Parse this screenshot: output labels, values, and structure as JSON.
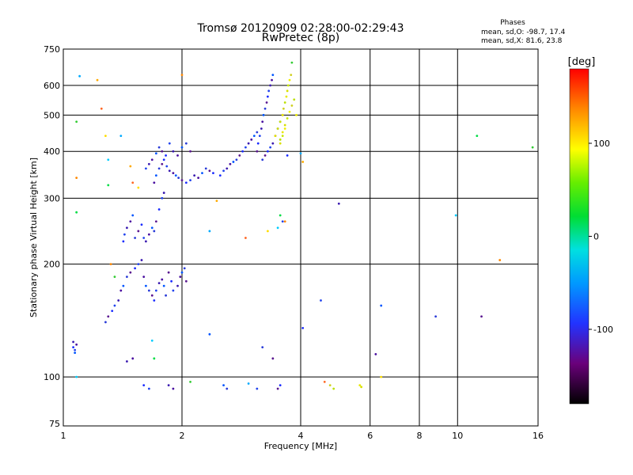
{
  "chart_data": {
    "type": "scatter",
    "title": "Tromsø 20120909 02:28:00-02:29:43",
    "subtitle": "RwPretec (8p)",
    "xlabel": "Frequency [MHz]",
    "ylabel": "Stationary phase Virtual Height [km]",
    "x_scale": "log",
    "y_scale": "log",
    "xlim": [
      1,
      16
    ],
    "ylim": [
      74,
      750
    ],
    "x_ticks": [
      1,
      2,
      4,
      6,
      8,
      10,
      16
    ],
    "y_ticks": [
      75,
      100,
      200,
      300,
      400,
      500,
      600,
      750
    ],
    "grid": true,
    "stats": {
      "heading": "Phases",
      "line_o": "mean, sd,O: -98.7, 17.4",
      "line_x": "mean, sd,X: 81.6, 23.8"
    },
    "colorbar": {
      "label": "[deg]",
      "range": [
        -180,
        180
      ],
      "ticks": [
        100,
        0,
        -100
      ]
    },
    "series": [
      {
        "color_group": "O-mode (blue/purple)",
        "points": [
          [
            1.06,
            120
          ],
          [
            1.07,
            118
          ],
          [
            1.06,
            124
          ],
          [
            1.08,
            122
          ],
          [
            1.07,
            116
          ],
          [
            1.28,
            140
          ],
          [
            1.3,
            145
          ],
          [
            1.33,
            150
          ],
          [
            1.35,
            155
          ],
          [
            1.38,
            160
          ],
          [
            1.4,
            170
          ],
          [
            1.42,
            175
          ],
          [
            1.45,
            185
          ],
          [
            1.48,
            190
          ],
          [
            1.52,
            195
          ],
          [
            1.55,
            200
          ],
          [
            1.58,
            205
          ],
          [
            1.6,
            185
          ],
          [
            1.62,
            175
          ],
          [
            1.65,
            170
          ],
          [
            1.68,
            165
          ],
          [
            1.7,
            160
          ],
          [
            1.72,
            170
          ],
          [
            1.75,
            178
          ],
          [
            1.78,
            182
          ],
          [
            1.8,
            175
          ],
          [
            1.82,
            165
          ],
          [
            1.85,
            190
          ],
          [
            1.88,
            180
          ],
          [
            1.9,
            170
          ],
          [
            1.95,
            175
          ],
          [
            1.98,
            185
          ],
          [
            2.0,
            190
          ],
          [
            2.03,
            195
          ],
          [
            2.05,
            180
          ],
          [
            1.42,
            230
          ],
          [
            1.43,
            240
          ],
          [
            1.45,
            250
          ],
          [
            1.48,
            260
          ],
          [
            1.5,
            270
          ],
          [
            1.52,
            235
          ],
          [
            1.55,
            245
          ],
          [
            1.58,
            255
          ],
          [
            1.6,
            235
          ],
          [
            1.62,
            230
          ],
          [
            1.65,
            240
          ],
          [
            1.68,
            250
          ],
          [
            1.7,
            245
          ],
          [
            1.72,
            260
          ],
          [
            1.75,
            280
          ],
          [
            1.78,
            300
          ],
          [
            1.8,
            310
          ],
          [
            1.7,
            330
          ],
          [
            1.72,
            345
          ],
          [
            1.75,
            360
          ],
          [
            1.78,
            370
          ],
          [
            1.8,
            380
          ],
          [
            1.83,
            365
          ],
          [
            1.86,
            355
          ],
          [
            1.9,
            350
          ],
          [
            1.93,
            345
          ],
          [
            1.96,
            340
          ],
          [
            2.0,
            335
          ],
          [
            2.05,
            330
          ],
          [
            2.1,
            335
          ],
          [
            2.15,
            345
          ],
          [
            2.2,
            340
          ],
          [
            2.25,
            350
          ],
          [
            2.3,
            360
          ],
          [
            2.35,
            355
          ],
          [
            2.4,
            350
          ],
          [
            1.62,
            360
          ],
          [
            1.65,
            370
          ],
          [
            1.68,
            380
          ],
          [
            1.72,
            395
          ],
          [
            1.75,
            410
          ],
          [
            1.78,
            400
          ],
          [
            1.82,
            390
          ],
          [
            1.86,
            420
          ],
          [
            1.9,
            400
          ],
          [
            1.95,
            390
          ],
          [
            2.0,
            410
          ],
          [
            2.05,
            420
          ],
          [
            2.1,
            400
          ],
          [
            2.5,
            345
          ],
          [
            2.55,
            355
          ],
          [
            2.6,
            360
          ],
          [
            2.65,
            370
          ],
          [
            2.7,
            375
          ],
          [
            2.75,
            380
          ],
          [
            2.8,
            390
          ],
          [
            2.85,
            400
          ],
          [
            2.9,
            410
          ],
          [
            2.95,
            420
          ],
          [
            3.0,
            430
          ],
          [
            3.05,
            440
          ],
          [
            3.1,
            450
          ],
          [
            3.1,
            400
          ],
          [
            3.12,
            420
          ],
          [
            3.15,
            440
          ],
          [
            3.18,
            460
          ],
          [
            3.2,
            480
          ],
          [
            3.22,
            500
          ],
          [
            3.25,
            520
          ],
          [
            3.28,
            540
          ],
          [
            3.3,
            560
          ],
          [
            3.32,
            580
          ],
          [
            3.35,
            600
          ],
          [
            3.38,
            620
          ],
          [
            3.4,
            640
          ],
          [
            3.2,
            380
          ],
          [
            3.25,
            390
          ],
          [
            3.3,
            400
          ],
          [
            3.35,
            410
          ],
          [
            3.4,
            420
          ],
          [
            3.45,
            440
          ],
          [
            3.5,
            460
          ],
          [
            3.55,
            480
          ],
          [
            3.6,
            500
          ],
          [
            1.6,
            95
          ],
          [
            1.65,
            93
          ],
          [
            1.85,
            95
          ],
          [
            1.9,
            93
          ],
          [
            2.55,
            95
          ],
          [
            2.6,
            93
          ],
          [
            3.5,
            93
          ],
          [
            3.55,
            95
          ],
          [
            3.1,
            93
          ],
          [
            1.45,
            110
          ],
          [
            1.5,
            112
          ],
          [
            2.35,
            130
          ],
          [
            3.2,
            120
          ],
          [
            3.4,
            112
          ],
          [
            4.05,
            135
          ],
          [
            4.5,
            160
          ],
          [
            5.0,
            290
          ],
          [
            6.2,
            115
          ],
          [
            6.4,
            155
          ],
          [
            8.8,
            145
          ],
          [
            11.5,
            145
          ],
          [
            3.7,
            390
          ],
          [
            3.6,
            260
          ]
        ]
      },
      {
        "color_group": "X-mode (yellow/green)",
        "points": [
          [
            3.45,
            440
          ],
          [
            3.5,
            460
          ],
          [
            3.55,
            480
          ],
          [
            3.6,
            500
          ],
          [
            3.62,
            520
          ],
          [
            3.65,
            540
          ],
          [
            3.68,
            560
          ],
          [
            3.7,
            580
          ],
          [
            3.72,
            600
          ],
          [
            3.75,
            620
          ],
          [
            3.78,
            640
          ],
          [
            3.55,
            430
          ],
          [
            3.6,
            450
          ],
          [
            3.65,
            470
          ],
          [
            3.7,
            490
          ],
          [
            3.75,
            510
          ],
          [
            3.8,
            530
          ],
          [
            3.85,
            550
          ],
          [
            3.9,
            500
          ],
          [
            3.55,
            420
          ],
          [
            3.6,
            440
          ],
          [
            3.65,
            460
          ],
          [
            4.75,
            95
          ],
          [
            4.85,
            93
          ],
          [
            5.65,
            95
          ],
          [
            5.7,
            94
          ]
        ]
      },
      {
        "color_group": "scattered other phases",
        "points": [
          [
            1.08,
            100
          ],
          [
            1.08,
            275
          ],
          [
            1.08,
            340
          ],
          [
            1.08,
            480
          ],
          [
            1.1,
            635
          ],
          [
            1.22,
            620
          ],
          [
            1.25,
            520
          ],
          [
            1.28,
            440
          ],
          [
            1.3,
            380
          ],
          [
            1.3,
            325
          ],
          [
            1.32,
            200
          ],
          [
            1.35,
            185
          ],
          [
            1.4,
            440
          ],
          [
            1.48,
            365
          ],
          [
            1.5,
            330
          ],
          [
            1.55,
            320
          ],
          [
            1.68,
            125
          ],
          [
            1.7,
            112
          ],
          [
            2.0,
            640
          ],
          [
            2.1,
            97
          ],
          [
            2.35,
            245
          ],
          [
            2.45,
            295
          ],
          [
            2.9,
            235
          ],
          [
            3.3,
            245
          ],
          [
            3.5,
            250
          ],
          [
            3.55,
            270
          ],
          [
            3.65,
            260
          ],
          [
            3.8,
            690
          ],
          [
            4.0,
            395
          ],
          [
            4.05,
            375
          ],
          [
            4.6,
            97
          ],
          [
            6.4,
            100
          ],
          [
            9.9,
            270
          ],
          [
            11.2,
            440
          ],
          [
            12.8,
            205
          ],
          [
            15.5,
            410
          ],
          [
            2.95,
            96
          ]
        ]
      }
    ]
  }
}
